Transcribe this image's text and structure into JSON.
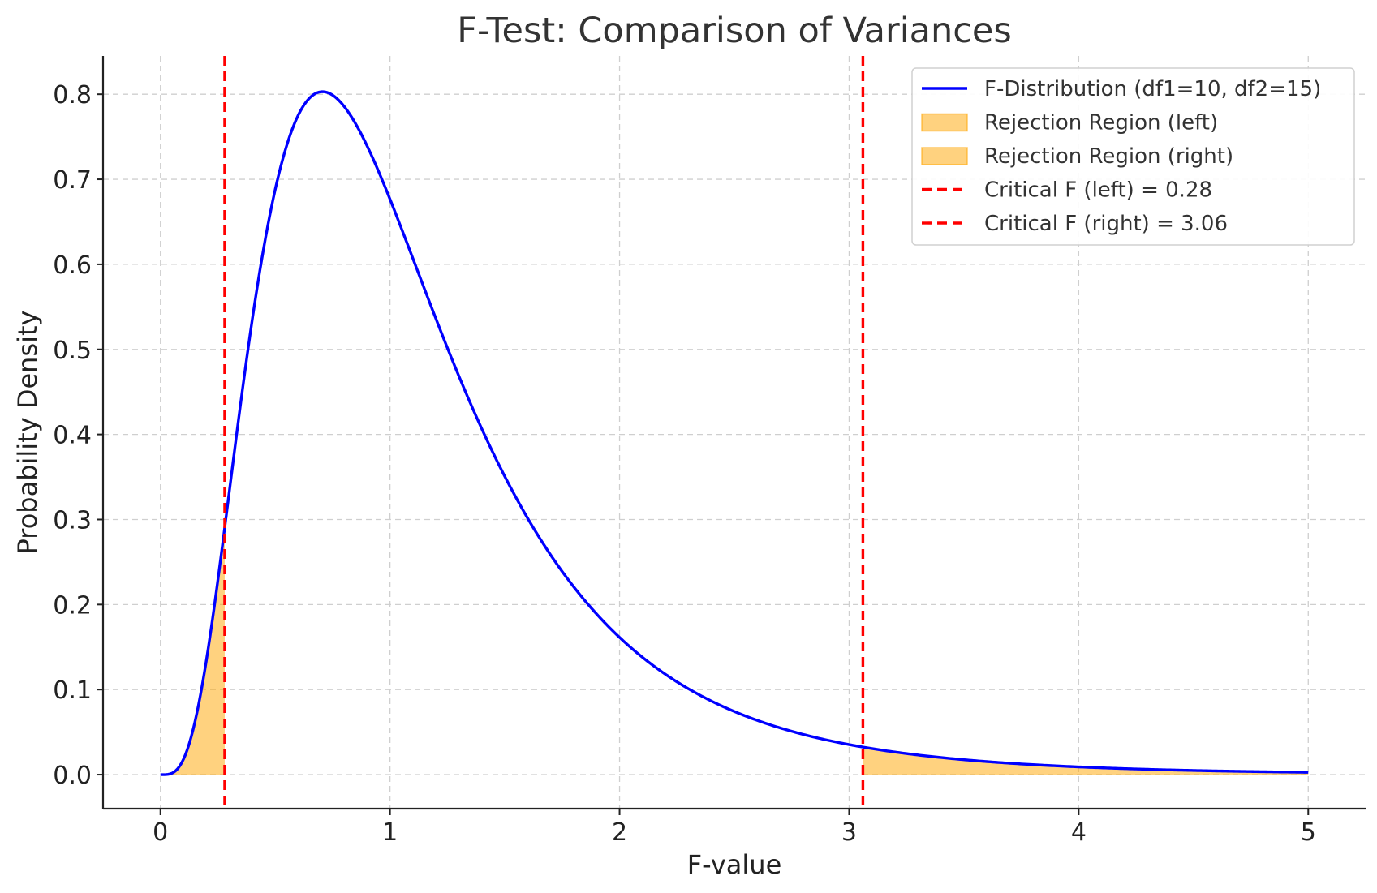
{
  "chart_data": {
    "type": "line",
    "title": "F-Test: Comparison of Variances",
    "xlabel": "F-value",
    "ylabel": "Probability Density",
    "xlim": [
      -0.25,
      5.25
    ],
    "ylim": [
      -0.04,
      0.845
    ],
    "x_ticks": [
      "0",
      "1",
      "2",
      "3",
      "4",
      "5"
    ],
    "y_ticks": [
      "0.0",
      "0.1",
      "0.2",
      "0.3",
      "0.4",
      "0.5",
      "0.6",
      "0.7",
      "0.8"
    ],
    "grid": true,
    "legend_position": "top-right",
    "series": [
      {
        "name": "F-Distribution (df1=10, df2=15)",
        "kind": "line",
        "color": "#0000ff",
        "df1": 10,
        "df2": 15,
        "x_range": [
          0,
          5
        ],
        "x": [
          0.0,
          0.05,
          0.1,
          0.15,
          0.2,
          0.25,
          0.28,
          0.3,
          0.4,
          0.5,
          0.6,
          0.7,
          0.8,
          0.9,
          1.0,
          1.2,
          1.4,
          1.6,
          1.8,
          2.0,
          2.5,
          3.0,
          3.06,
          3.5,
          4.0,
          4.5,
          5.0
        ],
        "values": [
          0.0,
          0.004,
          0.033,
          0.099,
          0.188,
          0.271,
          0.312,
          0.362,
          0.577,
          0.715,
          0.785,
          0.802,
          0.777,
          0.727,
          0.677,
          0.539,
          0.413,
          0.299,
          0.219,
          0.16,
          0.08,
          0.038,
          0.035,
          0.017,
          0.01,
          0.006,
          0.003
        ]
      },
      {
        "name": "Rejection Region (left)",
        "kind": "area",
        "color": "#ffa500",
        "x_range": [
          0,
          0.28
        ]
      },
      {
        "name": "Rejection Region (right)",
        "kind": "area",
        "color": "#ffa500",
        "x_range": [
          3.06,
          5
        ]
      },
      {
        "name": "Critical F (left) = 0.28",
        "kind": "vline",
        "color": "#ff0000",
        "x": 0.28
      },
      {
        "name": "Critical F (right) = 3.06",
        "kind": "vline",
        "color": "#ff0000",
        "x": 3.06
      }
    ]
  }
}
